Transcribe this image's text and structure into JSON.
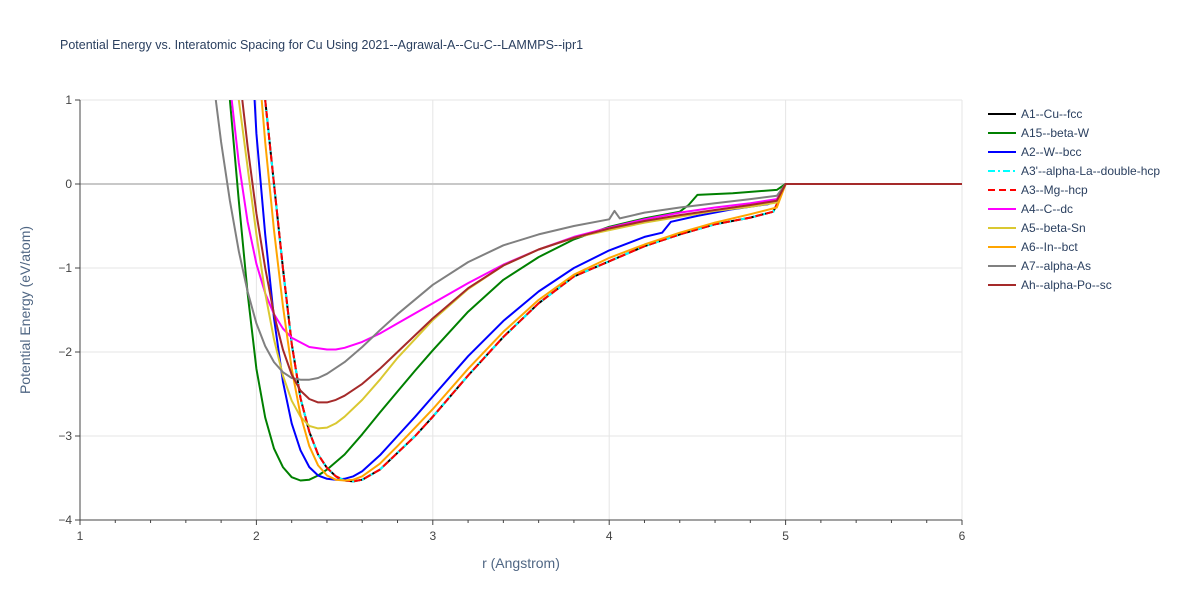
{
  "chart_data": {
    "type": "line",
    "title": "Potential Energy vs. Interatomic Spacing for Cu Using 2021--Agrawal-A--Cu-C--LAMMPS--ipr1",
    "xlabel": "r (Angstrom)",
    "ylabel": "Potential Energy (eV/atom)",
    "xlim": [
      1,
      6
    ],
    "ylim": [
      -4,
      1
    ],
    "xticks": [
      1,
      2,
      3,
      4,
      5,
      6
    ],
    "yticks": [
      1,
      0,
      -1,
      -2,
      -3,
      -4
    ],
    "grid": true,
    "legend_position": "right",
    "series": [
      {
        "name": "A1--Cu--fcc",
        "color": "#000000",
        "dash": "solid",
        "x": [
          2.05,
          2.1,
          2.15,
          2.2,
          2.25,
          2.3,
          2.35,
          2.4,
          2.45,
          2.5,
          2.55,
          2.6,
          2.7,
          2.8,
          2.9,
          3.0,
          3.2,
          3.4,
          3.6,
          3.8,
          4.0,
          4.2,
          4.4,
          4.6,
          4.8,
          4.93,
          4.96,
          5.0,
          6.0
        ],
        "y": [
          1.0,
          0.0,
          -1.0,
          -1.9,
          -2.55,
          -2.95,
          -3.22,
          -3.38,
          -3.48,
          -3.53,
          -3.54,
          -3.52,
          -3.4,
          -3.2,
          -3.0,
          -2.77,
          -2.28,
          -1.82,
          -1.42,
          -1.1,
          -0.92,
          -0.74,
          -0.6,
          -0.48,
          -0.4,
          -0.33,
          -0.2,
          0.0,
          0.0
        ]
      },
      {
        "name": "A15--beta-W",
        "color": "#008000",
        "dash": "solid",
        "x": [
          1.85,
          1.9,
          1.95,
          2.0,
          2.05,
          2.1,
          2.15,
          2.2,
          2.25,
          2.3,
          2.35,
          2.4,
          2.5,
          2.6,
          2.7,
          2.8,
          2.9,
          3.0,
          3.2,
          3.4,
          3.6,
          3.8,
          4.0,
          4.2,
          4.4,
          4.45,
          4.5,
          4.7,
          4.95,
          5.0,
          6.0
        ],
        "y": [
          1.0,
          -0.2,
          -1.3,
          -2.2,
          -2.78,
          -3.15,
          -3.37,
          -3.49,
          -3.53,
          -3.52,
          -3.47,
          -3.4,
          -3.22,
          -2.98,
          -2.72,
          -2.47,
          -2.22,
          -1.98,
          -1.52,
          -1.14,
          -0.87,
          -0.66,
          -0.51,
          -0.41,
          -0.33,
          -0.25,
          -0.13,
          -0.11,
          -0.07,
          0.0,
          0.0
        ]
      },
      {
        "name": "A2--W--bcc",
        "color": "#0000FF",
        "dash": "solid",
        "x": [
          1.99,
          2.0,
          2.05,
          2.1,
          2.15,
          2.2,
          2.25,
          2.3,
          2.35,
          2.4,
          2.45,
          2.5,
          2.55,
          2.6,
          2.7,
          2.8,
          2.9,
          3.0,
          3.2,
          3.4,
          3.6,
          3.8,
          4.0,
          4.2,
          4.3,
          4.35,
          4.5,
          4.7,
          4.9,
          4.95,
          5.0,
          6.0
        ],
        "y": [
          1.0,
          0.6,
          -0.6,
          -1.6,
          -2.35,
          -2.85,
          -3.17,
          -3.37,
          -3.47,
          -3.51,
          -3.52,
          -3.51,
          -3.48,
          -3.42,
          -3.23,
          -3.0,
          -2.77,
          -2.53,
          -2.05,
          -1.63,
          -1.28,
          -1.0,
          -0.79,
          -0.63,
          -0.58,
          -0.45,
          -0.38,
          -0.3,
          -0.24,
          -0.2,
          0.0,
          0.0
        ]
      },
      {
        "name": "A3'--alpha-La--double-hcp",
        "color": "#00FFFF",
        "dash": "dashdot",
        "x": [
          2.05,
          2.1,
          2.15,
          2.2,
          2.25,
          2.3,
          2.35,
          2.4,
          2.45,
          2.5,
          2.55,
          2.6,
          2.7,
          2.8,
          2.9,
          3.0,
          3.2,
          3.4,
          3.6,
          3.8,
          4.0,
          4.2,
          4.4,
          4.6,
          4.8,
          4.93,
          4.96,
          5.0,
          6.0
        ],
        "y": [
          1.0,
          0.0,
          -1.0,
          -1.9,
          -2.55,
          -2.95,
          -3.22,
          -3.38,
          -3.48,
          -3.53,
          -3.54,
          -3.52,
          -3.4,
          -3.2,
          -3.0,
          -2.77,
          -2.28,
          -1.82,
          -1.42,
          -1.1,
          -0.92,
          -0.74,
          -0.6,
          -0.48,
          -0.4,
          -0.33,
          -0.2,
          0.0,
          0.0
        ]
      },
      {
        "name": "A3--Mg--hcp",
        "color": "#FF0000",
        "dash": "dash",
        "x": [
          2.05,
          2.1,
          2.15,
          2.2,
          2.25,
          2.3,
          2.35,
          2.4,
          2.45,
          2.5,
          2.55,
          2.6,
          2.7,
          2.8,
          2.9,
          3.0,
          3.2,
          3.4,
          3.6,
          3.8,
          4.0,
          4.2,
          4.4,
          4.6,
          4.8,
          4.93,
          4.96,
          5.0,
          6.0
        ],
        "y": [
          1.0,
          0.0,
          -1.0,
          -1.9,
          -2.55,
          -2.95,
          -3.22,
          -3.38,
          -3.48,
          -3.53,
          -3.54,
          -3.52,
          -3.4,
          -3.2,
          -3.0,
          -2.77,
          -2.28,
          -1.82,
          -1.42,
          -1.1,
          -0.92,
          -0.74,
          -0.6,
          -0.48,
          -0.4,
          -0.33,
          -0.2,
          0.0,
          0.0
        ]
      },
      {
        "name": "A4--C--dc",
        "color": "#FF00FF",
        "dash": "solid",
        "x": [
          1.86,
          1.9,
          1.95,
          2.0,
          2.05,
          2.1,
          2.15,
          2.2,
          2.3,
          2.4,
          2.45,
          2.5,
          2.6,
          2.7,
          2.8,
          3.0,
          3.2,
          3.4,
          3.6,
          3.8,
          4.0,
          4.2,
          4.4,
          4.6,
          4.8,
          4.95,
          5.0,
          6.0
        ],
        "y": [
          1.0,
          0.25,
          -0.45,
          -0.95,
          -1.3,
          -1.55,
          -1.72,
          -1.83,
          -1.94,
          -1.97,
          -1.97,
          -1.95,
          -1.88,
          -1.78,
          -1.66,
          -1.42,
          -1.18,
          -0.96,
          -0.78,
          -0.63,
          -0.52,
          -0.42,
          -0.34,
          -0.28,
          -0.23,
          -0.18,
          0.0,
          0.0
        ]
      },
      {
        "name": "A5--beta-Sn",
        "color": "#DAC831",
        "dash": "solid",
        "x": [
          1.9,
          1.95,
          2.0,
          2.05,
          2.1,
          2.15,
          2.2,
          2.25,
          2.3,
          2.35,
          2.4,
          2.45,
          2.5,
          2.6,
          2.7,
          2.8,
          3.0,
          3.2,
          3.4,
          3.6,
          3.8,
          4.0,
          4.2,
          4.4,
          4.6,
          4.8,
          4.95,
          5.0,
          6.0
        ],
        "y": [
          1.0,
          0.2,
          -0.6,
          -1.3,
          -1.85,
          -2.28,
          -2.58,
          -2.77,
          -2.88,
          -2.91,
          -2.9,
          -2.85,
          -2.77,
          -2.57,
          -2.33,
          -2.07,
          -1.62,
          -1.25,
          -0.97,
          -0.78,
          -0.64,
          -0.55,
          -0.46,
          -0.39,
          -0.32,
          -0.27,
          -0.22,
          0.0,
          0.0
        ]
      },
      {
        "name": "A6--In--bct",
        "color": "#FFA500",
        "dash": "solid",
        "x": [
          2.03,
          2.05,
          2.1,
          2.15,
          2.2,
          2.25,
          2.3,
          2.35,
          2.4,
          2.45,
          2.5,
          2.55,
          2.6,
          2.7,
          2.8,
          2.9,
          3.0,
          3.2,
          3.4,
          3.6,
          3.8,
          4.0,
          4.2,
          4.4,
          4.6,
          4.8,
          4.95,
          5.0,
          6.0
        ],
        "y": [
          1.0,
          0.5,
          -0.55,
          -1.45,
          -2.2,
          -2.75,
          -3.12,
          -3.35,
          -3.47,
          -3.52,
          -3.53,
          -3.52,
          -3.48,
          -3.33,
          -3.12,
          -2.9,
          -2.68,
          -2.2,
          -1.76,
          -1.38,
          -1.08,
          -0.88,
          -0.72,
          -0.58,
          -0.46,
          -0.36,
          -0.28,
          0.0,
          0.0
        ]
      },
      {
        "name": "A7--alpha-As",
        "color": "#808080",
        "dash": "solid",
        "x": [
          1.77,
          1.8,
          1.85,
          1.9,
          1.95,
          2.0,
          2.05,
          2.1,
          2.15,
          2.2,
          2.25,
          2.3,
          2.35,
          2.4,
          2.5,
          2.6,
          2.7,
          2.8,
          3.0,
          3.2,
          3.4,
          3.6,
          3.8,
          4.0,
          4.03,
          4.06,
          4.2,
          4.4,
          4.6,
          4.8,
          4.95,
          5.0,
          6.0
        ],
        "y": [
          1.0,
          0.5,
          -0.2,
          -0.8,
          -1.28,
          -1.66,
          -1.93,
          -2.12,
          -2.24,
          -2.31,
          -2.33,
          -2.33,
          -2.31,
          -2.26,
          -2.12,
          -1.94,
          -1.74,
          -1.55,
          -1.2,
          -0.93,
          -0.73,
          -0.6,
          -0.5,
          -0.42,
          -0.32,
          -0.41,
          -0.34,
          -0.28,
          -0.23,
          -0.18,
          -0.14,
          0.0,
          0.0
        ]
      },
      {
        "name": "Ah--alpha-Po--sc",
        "color": "#A52A2A",
        "dash": "solid",
        "x": [
          1.92,
          1.95,
          2.0,
          2.05,
          2.1,
          2.15,
          2.2,
          2.25,
          2.3,
          2.35,
          2.4,
          2.45,
          2.5,
          2.6,
          2.7,
          2.8,
          3.0,
          3.2,
          3.4,
          3.6,
          3.8,
          4.0,
          4.2,
          4.4,
          4.6,
          4.8,
          4.95,
          5.0,
          6.0
        ],
        "y": [
          1.0,
          0.45,
          -0.35,
          -1.0,
          -1.55,
          -1.97,
          -2.27,
          -2.46,
          -2.56,
          -2.6,
          -2.6,
          -2.57,
          -2.52,
          -2.38,
          -2.2,
          -2.0,
          -1.6,
          -1.24,
          -0.97,
          -0.78,
          -0.64,
          -0.53,
          -0.44,
          -0.37,
          -0.31,
          -0.25,
          -0.2,
          0.0,
          0.0
        ]
      }
    ]
  }
}
